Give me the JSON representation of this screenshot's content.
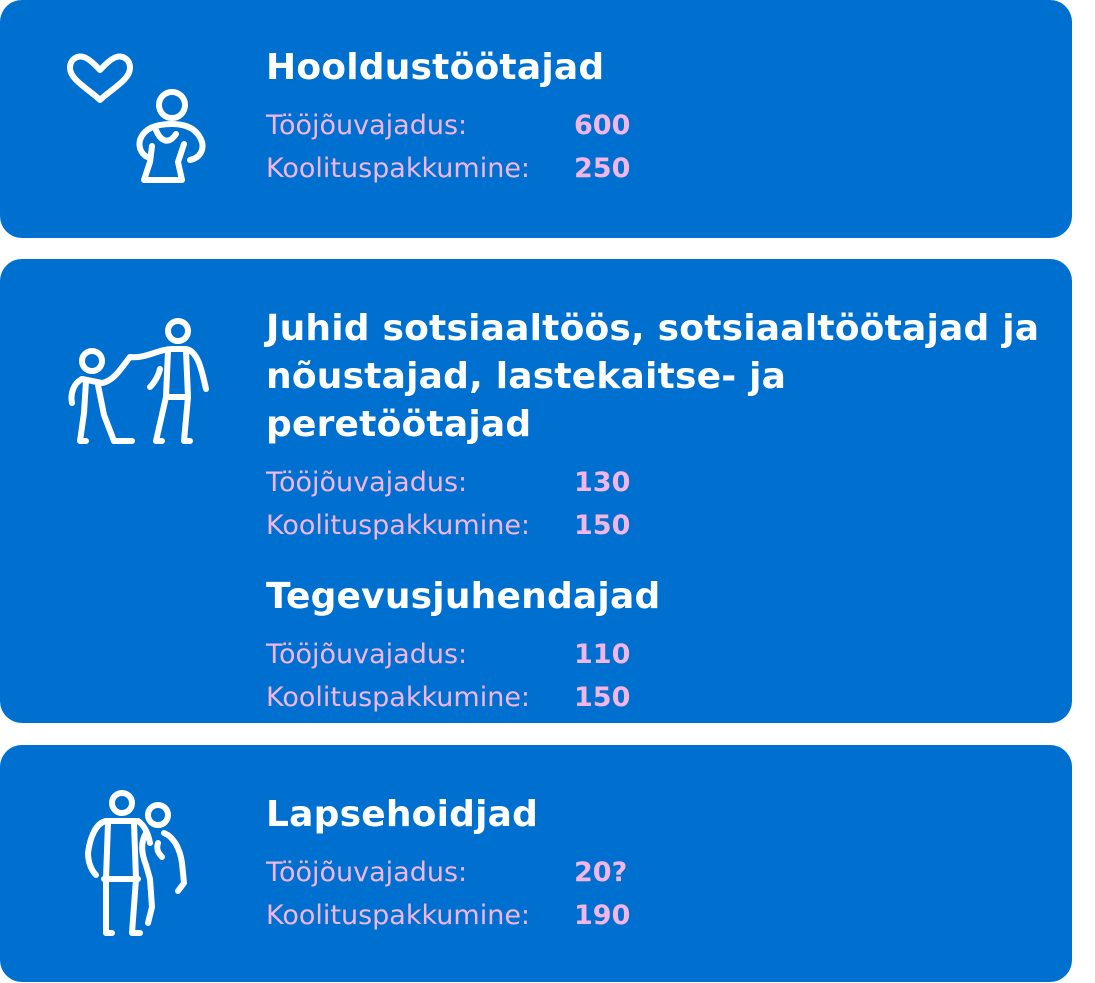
{
  "colors": {
    "card_background": "#0070d0",
    "title_text": "#ffffff",
    "stat_text": "#f2b6e6",
    "icon_stroke": "#ffffff"
  },
  "cards": [
    {
      "icon": "heart-person-icon",
      "sections": [
        {
          "title": "Hooldustöötajad",
          "stats": [
            {
              "label": "Tööjõuvajadus:",
              "value": "600"
            },
            {
              "label": "Koolituspakkumine:",
              "value": "250"
            }
          ]
        }
      ]
    },
    {
      "icon": "adult-helping-child-icon",
      "sections": [
        {
          "title": "Juhid sotsiaaltöös, sotsiaaltöötajad ja nõustajad, lastekaitse- ja peretöötajad",
          "stats": [
            {
              "label": "Tööjõuvajadus:",
              "value": "130"
            },
            {
              "label": "Koolituspakkumine:",
              "value": "150"
            }
          ]
        },
        {
          "title": "Tegevusjuhendajad",
          "stats": [
            {
              "label": "Tööjõuvajadus:",
              "value": "110"
            },
            {
              "label": "Koolituspakkumine:",
              "value": "150"
            }
          ]
        }
      ]
    },
    {
      "icon": "adult-with-child-icon",
      "sections": [
        {
          "title": "Lapsehoidjad",
          "stats": [
            {
              "label": "Tööjõuvajadus:",
              "value": "20?"
            },
            {
              "label": "Koolituspakkumine:",
              "value": "190"
            }
          ]
        }
      ]
    }
  ]
}
